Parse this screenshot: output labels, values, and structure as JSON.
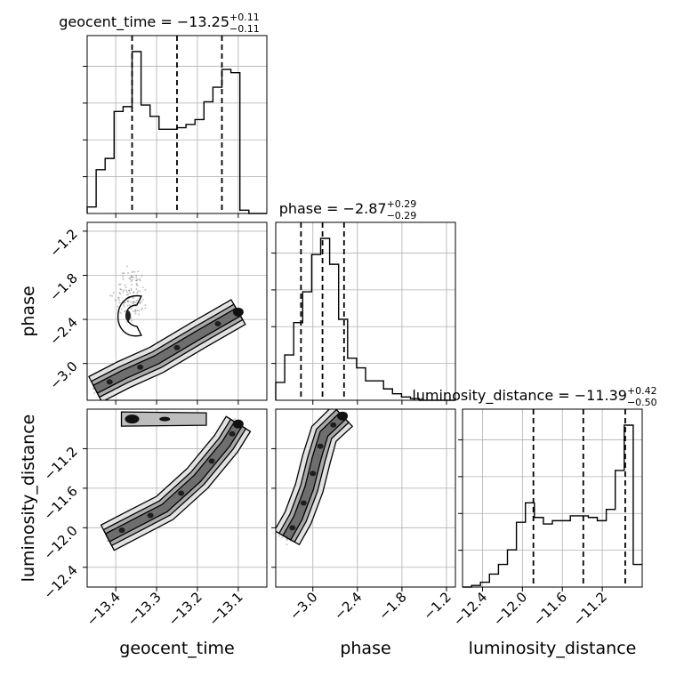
{
  "chart_data": {
    "type": "corner",
    "parameters": [
      {
        "name": "geocent_time",
        "median": "−13.25",
        "plus": "+0.11",
        "minus": "−0.11",
        "range": [
          -13.47,
          -13.03
        ],
        "quantiles": [
          -13.36,
          -13.25,
          -13.14
        ],
        "ticks": [
          -13.4,
          -13.3,
          -13.2,
          -13.1
        ],
        "tick_labels": [
          "−13.4",
          "−13.3",
          "−13.2",
          "−13.1"
        ]
      },
      {
        "name": "phase",
        "median": "−2.87",
        "plus": "+0.29",
        "minus": "−0.29",
        "range": [
          -3.5,
          -1.08
        ],
        "quantiles": [
          -3.16,
          -2.87,
          -2.58
        ],
        "ticks": [
          -3.0,
          -2.4,
          -1.8,
          -1.2
        ],
        "tick_labels": [
          "−3.0",
          "−2.4",
          "−1.8",
          "−1.2"
        ]
      },
      {
        "name": "luminosity_distance",
        "median": "−11.39",
        "plus": "+0.42",
        "minus": "−0.50",
        "range": [
          -12.6,
          -10.8
        ],
        "quantiles": [
          -11.89,
          -11.39,
          -10.97
        ],
        "ticks": [
          -12.4,
          -12.0,
          -11.6,
          -11.2
        ],
        "tick_labels": [
          "−12.4",
          "−12.0",
          "−11.6",
          "−11.2"
        ]
      }
    ],
    "histograms": [
      {
        "param": "geocent_time",
        "bin_edges": [
          -13.47,
          -13.448,
          -13.426,
          -13.404,
          -13.382,
          -13.36,
          -13.338,
          -13.316,
          -13.294,
          -13.272,
          -13.25,
          -13.228,
          -13.206,
          -13.184,
          -13.162,
          -13.14,
          -13.118,
          -13.096,
          -13.074,
          -13.052,
          -13.03
        ],
        "counts": [
          0.04,
          0.27,
          0.34,
          0.63,
          0.66,
          1.0,
          0.67,
          0.6,
          0.52,
          0.52,
          0.53,
          0.55,
          0.58,
          0.69,
          0.78,
          0.89,
          0.87,
          0.02,
          0.0,
          0.0
        ]
      },
      {
        "param": "phase",
        "bin_edges": [
          -3.5,
          -3.379,
          -3.258,
          -3.137,
          -3.016,
          -2.895,
          -2.774,
          -2.653,
          -2.532,
          -2.411,
          -2.29,
          -2.169,
          -2.048,
          -1.927,
          -1.806,
          -1.685,
          -1.564,
          -1.443,
          -1.322,
          -1.201,
          -1.08
        ],
        "counts": [
          0.11,
          0.28,
          0.48,
          0.67,
          0.9,
          1.0,
          0.84,
          0.5,
          0.26,
          0.2,
          0.12,
          0.12,
          0.07,
          0.04,
          0.02,
          0.01,
          0.0,
          0.0,
          0.0,
          0.0
        ]
      },
      {
        "param": "luminosity_distance",
        "bin_edges": [
          -12.6,
          -12.51,
          -12.42,
          -12.33,
          -12.24,
          -12.15,
          -12.06,
          -11.97,
          -11.88,
          -11.79,
          -11.7,
          -11.61,
          -11.52,
          -11.43,
          -11.34,
          -11.25,
          -11.16,
          -11.07,
          -10.98,
          -10.89,
          -10.8
        ],
        "counts": [
          0.0,
          0.01,
          0.03,
          0.08,
          0.14,
          0.23,
          0.4,
          0.52,
          0.43,
          0.39,
          0.41,
          0.41,
          0.44,
          0.44,
          0.43,
          0.41,
          0.48,
          0.72,
          1.0,
          0.14
        ]
      }
    ],
    "scatter_2d": [
      {
        "x_param": "geocent_time",
        "y_param": "phase"
      },
      {
        "x_param": "geocent_time",
        "y_param": "luminosity_distance"
      },
      {
        "x_param": "phase",
        "y_param": "luminosity_distance"
      }
    ],
    "grid": true,
    "colors": {
      "line": "#000000",
      "grid": "#b0b0b0",
      "points": "#555555",
      "contour_fill": "#6e6e6e"
    }
  }
}
